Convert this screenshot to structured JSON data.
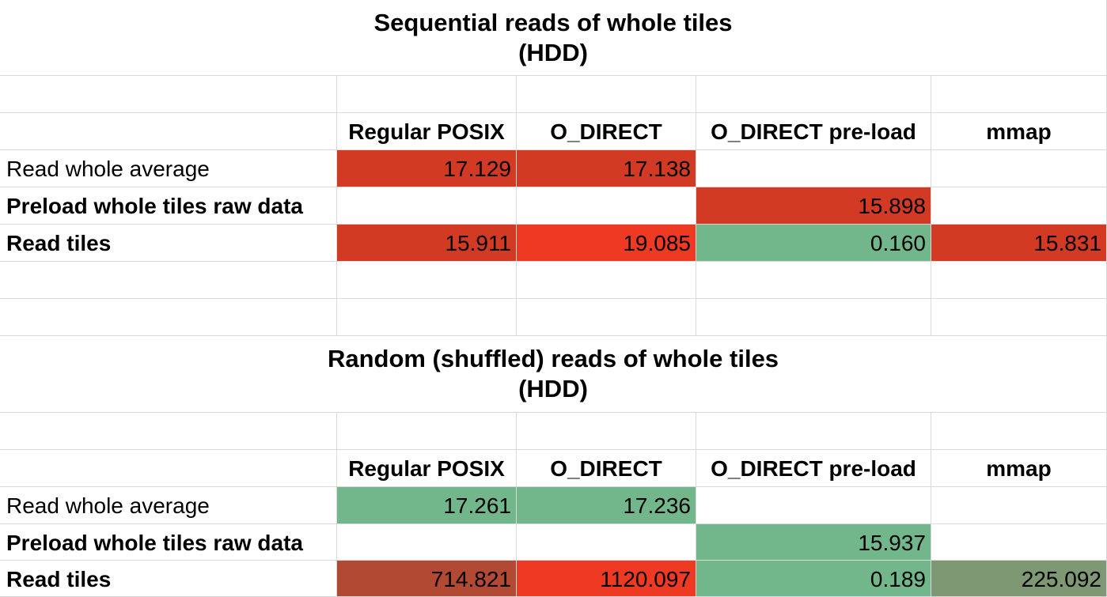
{
  "colors": {
    "red_dark": "#d33a24",
    "red_bright": "#ee3a22",
    "green": "#72b78c",
    "brown": "#b24a33",
    "olive": "#7e9873",
    "gridline": "#d9d9d9"
  },
  "columns": [
    "Regular POSIX",
    "O_DIRECT",
    "O_DIRECT pre-load",
    "mmap"
  ],
  "row_labels": {
    "read_whole_average": "Read whole average",
    "preload_whole_tiles": "Preload whole tiles raw data",
    "read_tiles": "Read tiles"
  },
  "sequential": {
    "title_line1": "Sequential reads of whole tiles",
    "title_line2": "(HDD)",
    "read_whole_average": [
      "17.129",
      "17.138",
      "",
      ""
    ],
    "preload_whole_tiles": [
      "",
      "",
      "15.898",
      ""
    ],
    "read_tiles": [
      "15.911",
      "19.085",
      "0.160",
      "15.831"
    ]
  },
  "random": {
    "title_line1": "Random (shuffled) reads of whole tiles",
    "title_line2": "(HDD)",
    "read_whole_average": [
      "17.261",
      "17.236",
      "",
      ""
    ],
    "preload_whole_tiles": [
      "",
      "",
      "15.937",
      ""
    ],
    "read_tiles": [
      "714.821",
      "1120.097",
      "0.189",
      "225.092"
    ]
  }
}
